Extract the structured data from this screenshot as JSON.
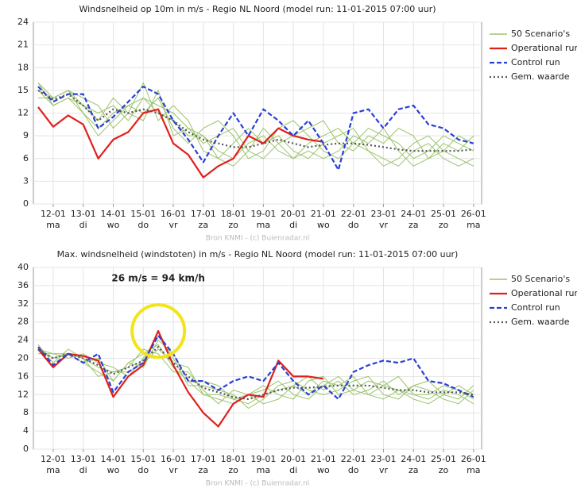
{
  "chart_data": [
    {
      "type": "line",
      "title": "Windsnelheid op 10m in m/s - Regio NL Noord (model run: 11-01-2015 07:00 uur)",
      "source": "Bron KNMI - (c) Buienradar.nl",
      "x": [
        0.5,
        1,
        1.5,
        2,
        2.5,
        3,
        3.5,
        4,
        4.5,
        5,
        5.5,
        6,
        6.5,
        7,
        7.5,
        8,
        8.5,
        9,
        9.5,
        10,
        10.5,
        11,
        11.5,
        12,
        12.5,
        13,
        13.5,
        14,
        14.5,
        15
      ],
      "xlim": [
        0.34,
        15.27
      ],
      "xticks": [
        {
          "value": 1,
          "label": "12-01"
        },
        {
          "value": 2,
          "label": "13-01"
        },
        {
          "value": 3,
          "label": "14-01"
        },
        {
          "value": 4,
          "label": "15-01"
        },
        {
          "value": 5,
          "label": "16-01"
        },
        {
          "value": 6,
          "label": "17-01"
        },
        {
          "value": 7,
          "label": "18-01"
        },
        {
          "value": 8,
          "label": "19-01"
        },
        {
          "value": 9,
          "label": "20-01"
        },
        {
          "value": 10,
          "label": "21-01"
        },
        {
          "value": 11,
          "label": "22-01"
        },
        {
          "value": 12,
          "label": "23-01"
        },
        {
          "value": 13,
          "label": "24-01"
        },
        {
          "value": 14,
          "label": "25-01"
        },
        {
          "value": 15,
          "label": "26-01"
        }
      ],
      "xtick_days": [
        "ma",
        "di",
        "wo",
        "do",
        "vr",
        "za",
        "zo",
        "ma",
        "di",
        "wo",
        "do",
        "vr",
        "za",
        "zo",
        "ma"
      ],
      "ylim": [
        0,
        24
      ],
      "yticks": [
        0,
        3,
        6,
        9,
        12,
        15,
        18,
        21,
        24
      ],
      "grid": true,
      "scenarios": {
        "name": "50 Scenario's",
        "color": "#9bc46a",
        "members": [
          [
            16,
            14,
            15,
            13,
            12,
            13,
            11,
            14,
            13,
            12,
            10,
            9,
            7,
            6,
            8,
            9,
            7,
            6,
            8,
            9,
            10,
            8,
            7,
            6,
            5,
            7,
            8,
            6,
            5,
            6
          ],
          [
            15,
            13,
            14,
            12,
            9,
            11,
            13,
            12,
            14,
            10,
            8,
            10,
            11,
            9,
            6,
            7,
            10,
            11,
            9,
            7,
            6,
            8,
            10,
            9,
            8,
            6,
            7,
            9,
            8,
            7
          ],
          [
            14,
            14,
            15,
            14,
            13,
            10,
            12,
            16,
            11,
            13,
            11,
            7,
            6,
            8,
            10,
            8,
            9,
            7,
            6,
            8,
            9,
            10,
            7,
            5,
            6,
            8,
            9,
            7,
            6,
            5
          ],
          [
            16,
            13,
            14,
            13,
            11,
            14,
            12,
            11,
            15,
            9,
            10,
            8,
            9,
            10,
            7,
            6,
            8,
            9,
            10,
            11,
            8,
            7,
            9,
            8,
            10,
            9,
            6,
            8,
            7,
            9
          ],
          [
            15,
            14,
            15,
            12,
            10,
            12,
            13,
            14,
            12,
            11,
            9,
            9,
            6,
            5,
            7,
            10,
            8,
            6,
            7,
            6,
            7,
            9,
            8,
            10,
            7,
            5,
            6,
            7,
            9,
            8
          ]
        ]
      },
      "series": [
        {
          "name": "Operational run",
          "color": "#e0201b",
          "dash": "solid",
          "values": [
            12.8,
            10.2,
            11.7,
            10.5,
            6,
            8.5,
            9.5,
            12,
            12.5,
            8,
            6.5,
            3.5,
            5,
            6,
            9,
            8,
            10,
            9,
            8.5,
            8.2,
            null,
            null,
            null,
            null,
            null,
            null,
            null,
            null,
            null,
            null
          ]
        },
        {
          "name": "Control run",
          "color": "#2a3fd6",
          "dash": "dashed",
          "values": [
            15.5,
            13.5,
            14.5,
            14.5,
            10,
            11.5,
            13.5,
            15.5,
            14.5,
            11,
            8.5,
            5.5,
            9,
            12,
            9,
            12.5,
            11,
            9,
            11,
            8,
            4.5,
            12,
            12.5,
            10,
            12.5,
            13,
            10.5,
            10,
            8.5,
            8
          ]
        },
        {
          "name": "Gem. waarde",
          "color": "#555555",
          "dash": "dotted",
          "values": [
            15,
            13.8,
            14.5,
            13,
            11,
            12.5,
            12,
            12.5,
            12,
            11,
            9.5,
            8.5,
            8,
            7.5,
            7.5,
            8,
            8.5,
            8,
            7.5,
            7.8,
            8,
            8,
            7.8,
            7.5,
            7.2,
            7,
            7,
            7,
            7,
            7.2
          ]
        }
      ]
    },
    {
      "type": "line",
      "title": "Max. windsnelheid (windstoten) in m/s - Regio NL Noord (model run: 11-01-2015 07:00 uur)",
      "source": "Bron KNMI - (c) Buienradar.nl",
      "annotation": "26 m/s = 94 km/h",
      "x": [
        0.5,
        1,
        1.5,
        2,
        2.5,
        3,
        3.5,
        4,
        4.5,
        5,
        5.5,
        6,
        6.5,
        7,
        7.5,
        8,
        8.5,
        9,
        9.5,
        10,
        10.5,
        11,
        11.5,
        12,
        12.5,
        13,
        13.5,
        14,
        14.5,
        15
      ],
      "xlim": [
        0.34,
        15.27
      ],
      "xticks": [
        {
          "value": 1,
          "label": "12-01"
        },
        {
          "value": 2,
          "label": "13-01"
        },
        {
          "value": 3,
          "label": "14-01"
        },
        {
          "value": 4,
          "label": "15-01"
        },
        {
          "value": 5,
          "label": "16-01"
        },
        {
          "value": 6,
          "label": "17-01"
        },
        {
          "value": 7,
          "label": "18-01"
        },
        {
          "value": 8,
          "label": "19-01"
        },
        {
          "value": 9,
          "label": "20-01"
        },
        {
          "value": 10,
          "label": "21-01"
        },
        {
          "value": 11,
          "label": "22-01"
        },
        {
          "value": 12,
          "label": "23-01"
        },
        {
          "value": 13,
          "label": "24-01"
        },
        {
          "value": 14,
          "label": "25-01"
        },
        {
          "value": 15,
          "label": "26-01"
        }
      ],
      "xtick_days": [
        "ma",
        "di",
        "wo",
        "do",
        "vr",
        "za",
        "zo",
        "ma",
        "di",
        "wo",
        "do",
        "vr",
        "za",
        "zo",
        "ma"
      ],
      "ylim": [
        0,
        40
      ],
      "yticks": [
        0,
        4,
        8,
        12,
        16,
        20,
        24,
        28,
        32,
        36,
        40
      ],
      "grid": true,
      "scenarios": {
        "name": "50 Scenario's",
        "color": "#9bc46a",
        "members": [
          [
            22,
            20,
            21,
            19,
            17,
            15,
            19,
            21,
            23,
            18,
            15,
            12,
            11,
            10,
            12,
            13,
            15,
            12,
            11,
            14,
            16,
            13,
            12,
            14,
            13,
            11,
            10,
            12,
            14,
            12
          ],
          [
            21,
            21,
            20,
            21,
            19,
            18,
            16,
            20,
            25,
            20,
            14,
            14,
            13,
            12,
            9,
            11,
            14,
            15,
            13,
            12,
            13,
            15,
            16,
            12,
            11,
            14,
            13,
            11,
            10,
            13
          ],
          [
            23,
            19,
            22,
            20,
            16,
            17,
            18,
            22,
            21,
            17,
            17,
            13,
            10,
            13,
            12,
            14,
            12,
            11,
            15,
            16,
            12,
            13,
            15,
            14,
            16,
            12,
            11,
            13,
            12,
            10
          ],
          [
            22,
            20,
            21,
            19,
            20,
            15,
            19,
            18,
            24,
            21,
            15,
            15,
            14,
            11,
            10,
            12,
            13,
            14,
            16,
            13,
            15,
            12,
            13,
            15,
            12,
            14,
            15,
            12,
            11,
            14
          ],
          [
            22,
            21,
            21,
            20,
            18,
            17,
            17,
            19,
            22,
            19,
            18,
            12,
            12,
            11,
            12,
            10,
            11,
            14,
            12,
            15,
            14,
            16,
            12,
            11,
            13,
            12,
            12,
            14,
            13,
            11
          ]
        ]
      },
      "series": [
        {
          "name": "Operational run",
          "color": "#e0201b",
          "dash": "solid",
          "values": [
            22,
            18,
            21,
            20.5,
            19.5,
            11.5,
            16,
            18.5,
            26,
            18.5,
            12.5,
            8,
            5,
            10,
            12,
            11.5,
            19.5,
            16,
            16,
            15.5,
            null,
            null,
            null,
            null,
            null,
            null,
            null,
            null,
            null,
            null
          ]
        },
        {
          "name": "Control run",
          "color": "#2a3fd6",
          "dash": "dashed",
          "values": [
            22.5,
            18.5,
            21,
            19,
            21,
            12.5,
            17,
            19,
            25,
            21,
            15,
            15,
            13,
            15,
            16,
            15,
            19,
            15,
            12,
            14,
            11,
            17,
            18.5,
            19.5,
            19,
            20,
            15,
            14.5,
            13,
            11.5
          ]
        },
        {
          "name": "Gem. waarde",
          "color": "#555555",
          "dash": "dotted",
          "values": [
            22,
            20,
            21,
            20,
            18.5,
            16.5,
            18,
            19.5,
            22.5,
            19,
            16,
            13.5,
            12.5,
            11.5,
            11,
            12,
            13,
            13.5,
            13.5,
            13.8,
            14,
            14,
            14,
            13.5,
            13,
            13,
            12.5,
            12.5,
            12.5,
            12
          ]
        }
      ]
    }
  ]
}
